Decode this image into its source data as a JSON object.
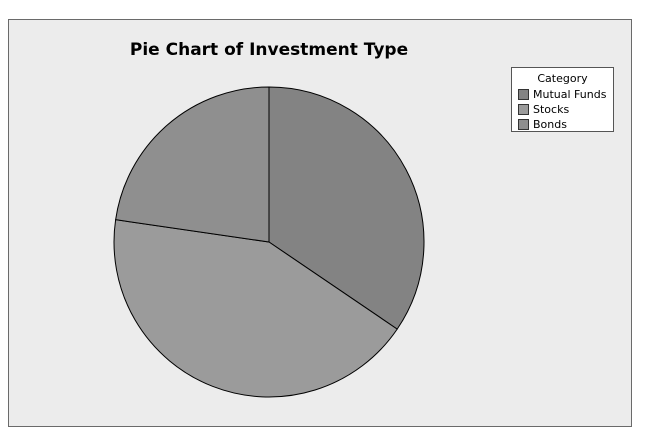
{
  "chart_data": {
    "type": "pie",
    "title": "Pie Chart of Investment Type",
    "legend": {
      "title": "Category",
      "placement": "top-right"
    },
    "slices": [
      {
        "label": "Mutual Funds",
        "value": 34.5,
        "color": "#838383"
      },
      {
        "label": "Stocks",
        "value": 42.8,
        "color": "#9b9b9b"
      },
      {
        "label": "Bonds",
        "value": 22.7,
        "color": "#8f8f8f"
      }
    ],
    "start_angle_deg": 0,
    "direction": "clockwise",
    "colors": {
      "background": "#ececec",
      "outline": "#000000"
    }
  }
}
